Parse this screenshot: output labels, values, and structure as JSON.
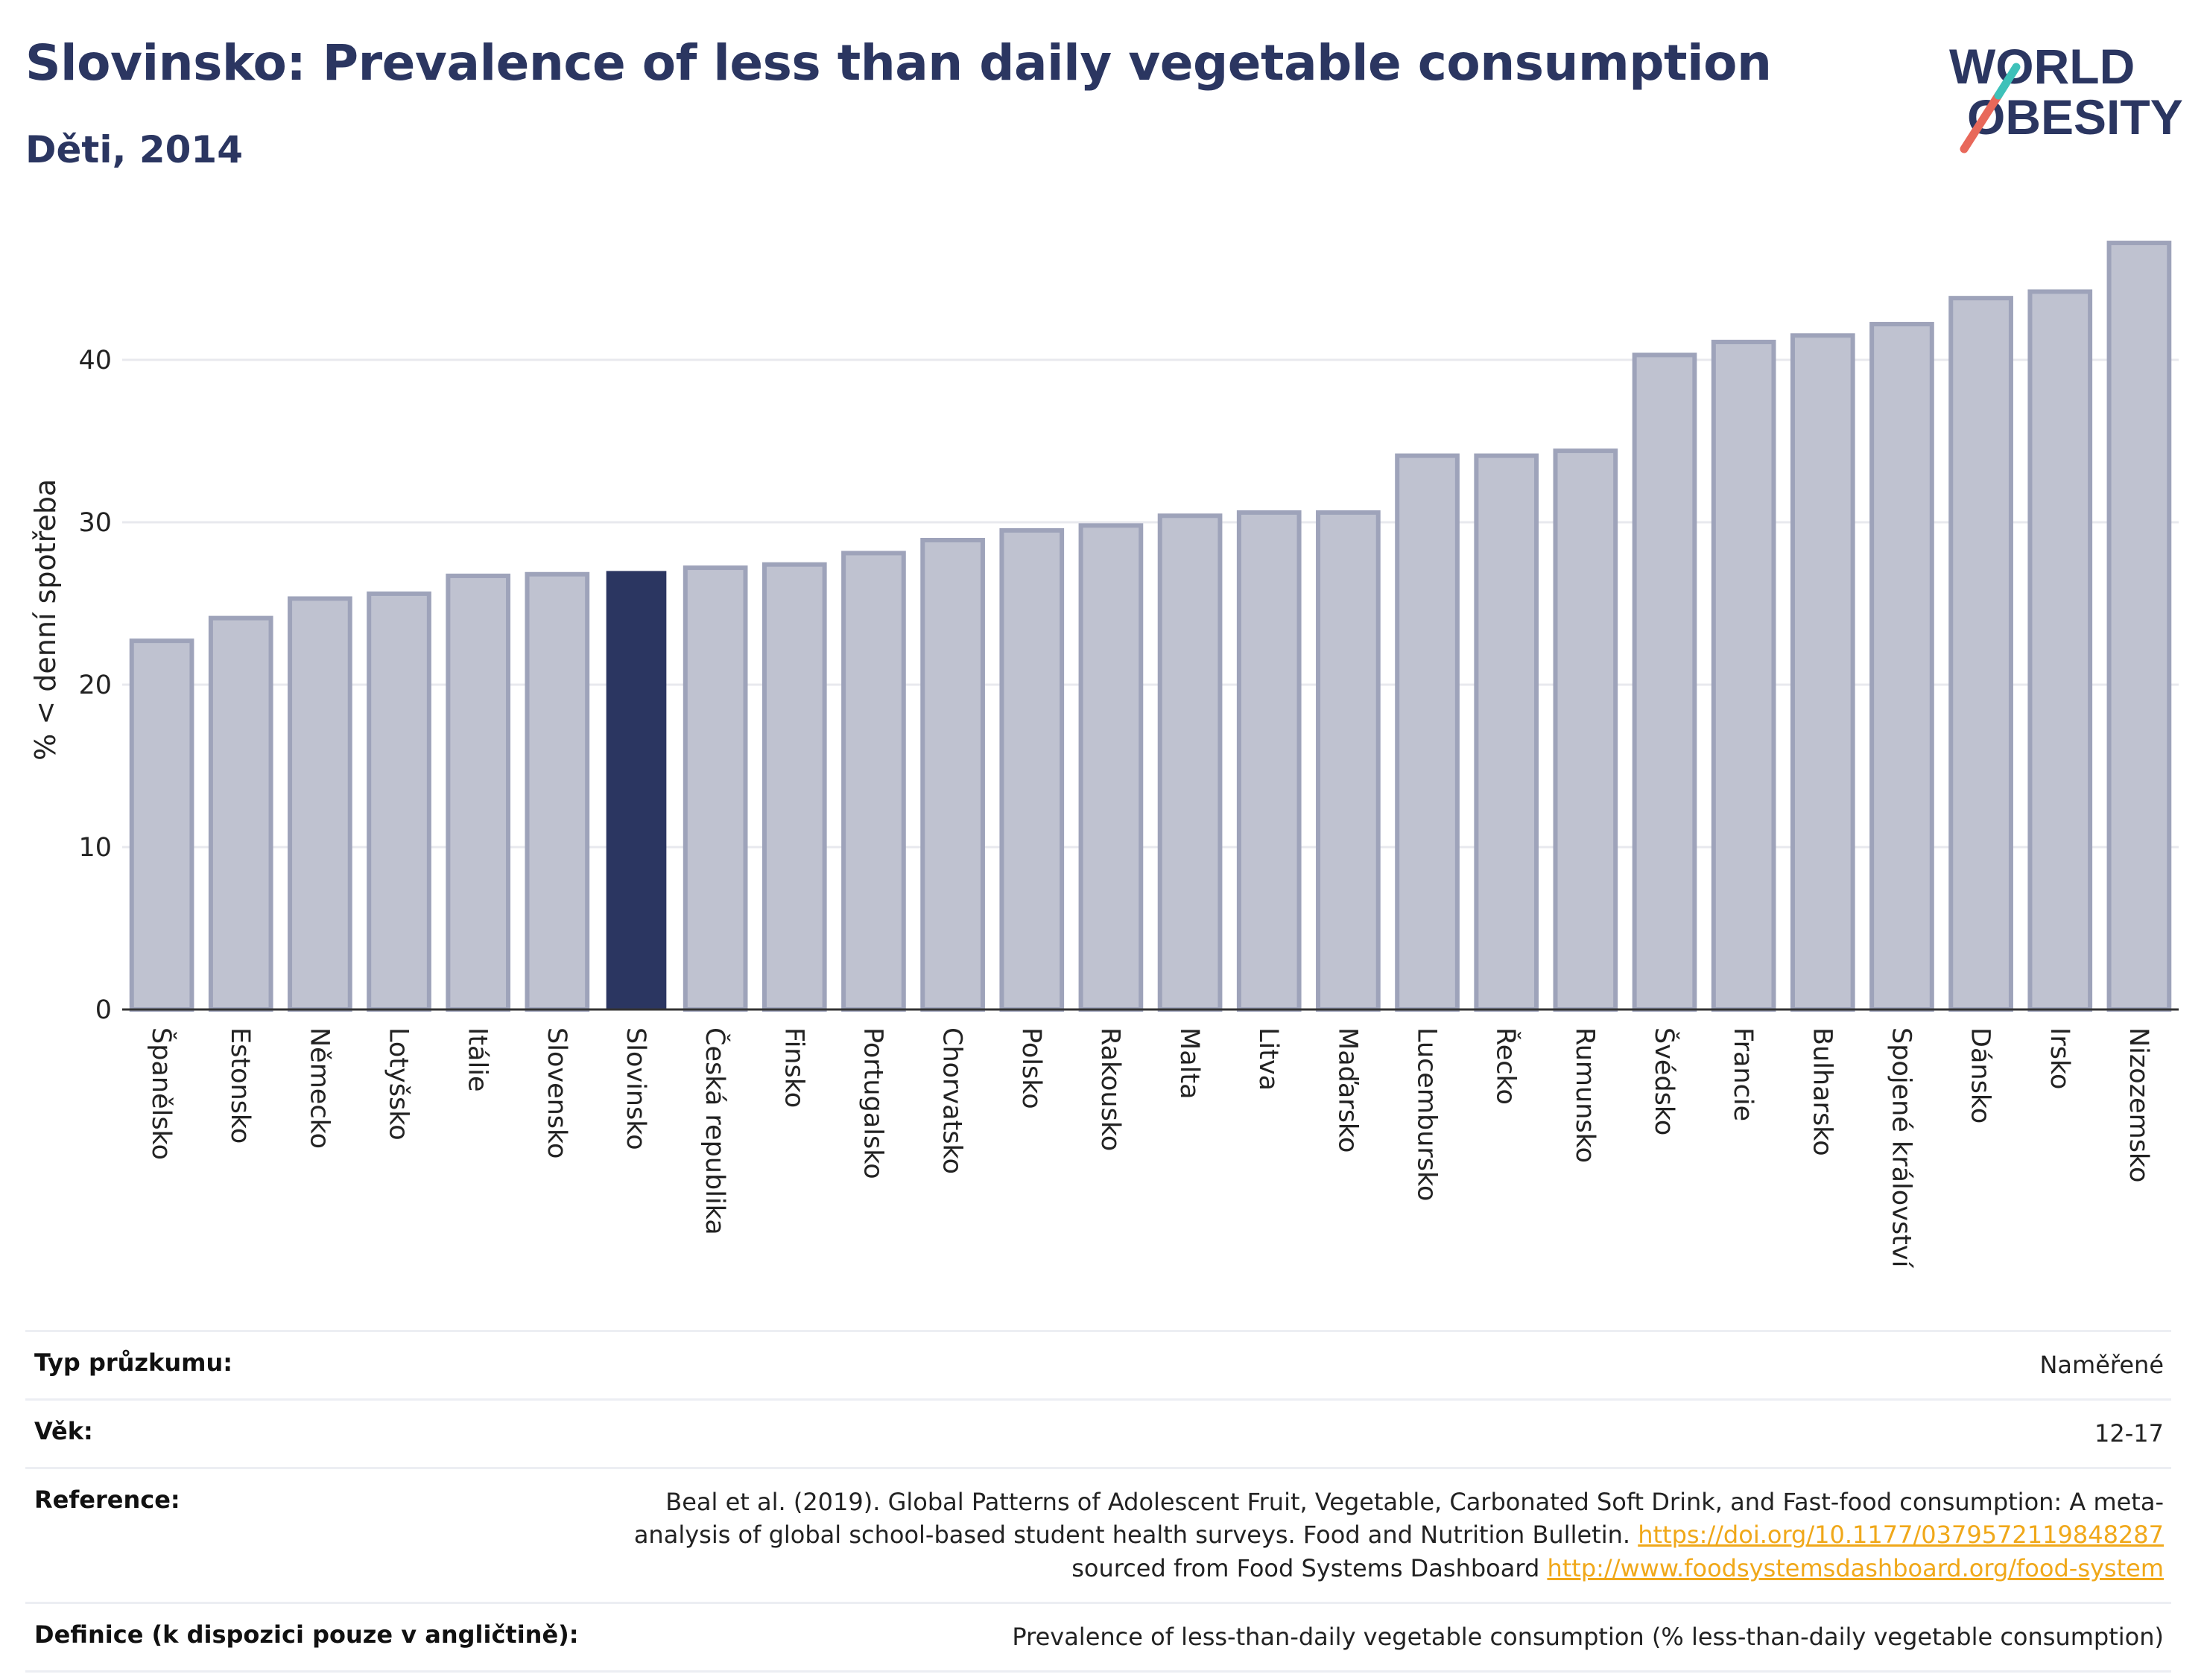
{
  "header": {
    "title": "Slovinsko: Prevalence of less than daily vegetable consumption",
    "subtitle": "Děti, 2014",
    "logo_line1": "WORLD",
    "logo_line2": "OBESITY"
  },
  "colors": {
    "bar": "#bfc2d0",
    "bar_border": "#9ea3ba",
    "highlight": "#2b3661",
    "logo_red": "#e8685a",
    "logo_teal": "#3ec1b9"
  },
  "chart_data": {
    "type": "bar",
    "title": "Slovinsko: Prevalence of less than daily vegetable consumption",
    "subtitle": "Děti, 2014",
    "ylabel": "% < denní spotřeba",
    "ylim": [
      0,
      48
    ],
    "yticks": [
      0,
      10,
      20,
      30,
      40
    ],
    "grid": true,
    "highlight": "Slovinsko",
    "categories": [
      "Španělsko",
      "Estonsko",
      "Německo",
      "Lotyšsko",
      "Itálie",
      "Slovensko",
      "Slovinsko",
      "Česká republika",
      "Finsko",
      "Portugalsko",
      "Chorvatsko",
      "Polsko",
      "Rakousko",
      "Malta",
      "Litva",
      "Maďarsko",
      "Lucembursko",
      "Řecko",
      "Rumunsko",
      "Švédsko",
      "Francie",
      "Bulharsko",
      "Spojené království",
      "Dánsko",
      "Irsko",
      "Nizozemsko"
    ],
    "values": [
      22.7,
      24.1,
      25.3,
      25.6,
      26.7,
      26.8,
      27.0,
      27.2,
      27.4,
      28.1,
      28.9,
      29.5,
      29.8,
      30.4,
      30.6,
      30.6,
      34.1,
      34.1,
      34.4,
      40.3,
      41.1,
      41.5,
      42.2,
      43.8,
      44.2,
      47.2
    ]
  },
  "info": {
    "survey_label": "Typ průzkumu:",
    "survey_value": "Naměřené",
    "age_label": "Věk:",
    "age_value": "12-17",
    "reference_label": "Reference:",
    "reference_text": "Beal et al. (2019). Global Patterns of Adolescent Fruit, Vegetable, Carbonated Soft Drink, and Fast-food consumption: A meta-analysis of global school-based student health surveys. Food and Nutrition Bulletin.",
    "reference_link1": "https://doi.org/10.1177/0379572119848287",
    "reference_mid": "sourced from Food Systems Dashboard",
    "reference_link2": "http://www.foodsystemsdashboard.org/food-system",
    "definition_label": "Definice (k dispozici pouze v angličtině):",
    "definition_value": "Prevalence of less-than-daily vegetable consumption (% less-than-daily vegetable consumption)"
  }
}
